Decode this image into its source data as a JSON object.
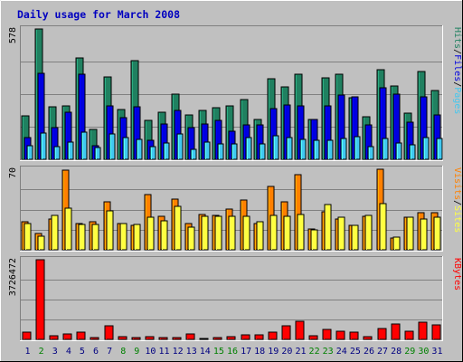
{
  "title": "Daily usage for March 2008",
  "colors": {
    "title_text": "#0000c0",
    "frame_bg": "#c0c0c0",
    "panel_bg": "#c0c0c0",
    "hits": "#208060",
    "files": "#0000e0",
    "pages": "#40c8f0",
    "visits": "#ff8000",
    "sites": "#ffff40",
    "kbytes": "#ff0000",
    "weekday_label": "#000080",
    "weekend_label": "#008000"
  },
  "chart_data": [
    {
      "type": "bar",
      "panel": "hits-files-pages",
      "ymax_label": "578",
      "ylim": [
        0,
        578
      ],
      "legend": [
        {
          "name": "Hits",
          "color_key": "hits"
        },
        {
          "name": "/",
          "color_key": "separator"
        },
        {
          "name": "Files",
          "color_key": "files"
        },
        {
          "name": "/",
          "color_key": "separator"
        },
        {
          "name": "Pages",
          "color_key": "pages"
        }
      ],
      "categories": [
        "1",
        "2",
        "3",
        "4",
        "5",
        "6",
        "7",
        "8",
        "9",
        "10",
        "11",
        "12",
        "13",
        "14",
        "15",
        "16",
        "17",
        "18",
        "19",
        "20",
        "21",
        "22",
        "23",
        "24",
        "25",
        "26",
        "27",
        "28",
        "29",
        "30",
        "31"
      ],
      "series": [
        {
          "name": "Hits",
          "color_key": "hits",
          "values": [
            193,
            578,
            232,
            237,
            449,
            134,
            365,
            220,
            437,
            171,
            210,
            288,
            197,
            216,
            229,
            235,
            264,
            175,
            357,
            320,
            376,
            178,
            361,
            378,
            271,
            188,
            399,
            327,
            205,
            389,
            307
          ]
        },
        {
          "name": "Files",
          "color_key": "files",
          "values": [
            95,
            382,
            140,
            208,
            378,
            61,
            237,
            183,
            232,
            86,
            158,
            216,
            139,
            158,
            173,
            124,
            154,
            151,
            225,
            242,
            237,
            178,
            238,
            284,
            276,
            152,
            316,
            289,
            164,
            276,
            197
          ]
        },
        {
          "name": "Pages",
          "color_key": "pages",
          "values": [
            61,
            118,
            57,
            75,
            121,
            53,
            113,
            98,
            90,
            56,
            72,
            113,
            46,
            77,
            69,
            68,
            98,
            68,
            104,
            95,
            88,
            86,
            85,
            93,
            101,
            55,
            94,
            72,
            65,
            96,
            92
          ]
        }
      ]
    },
    {
      "type": "bar",
      "panel": "visits-sites",
      "ymax_label": "70",
      "ylim": [
        0,
        70
      ],
      "legend": [
        {
          "name": "Visits",
          "color_key": "visits"
        },
        {
          "name": "/",
          "color_key": "separator"
        },
        {
          "name": "Sites",
          "color_key": "sites"
        }
      ],
      "categories": [
        "1",
        "2",
        "3",
        "4",
        "5",
        "6",
        "7",
        "8",
        "9",
        "10",
        "11",
        "12",
        "13",
        "14",
        "15",
        "16",
        "17",
        "18",
        "19",
        "20",
        "21",
        "22",
        "23",
        "24",
        "25",
        "26",
        "27",
        "28",
        "29",
        "30",
        "31"
      ],
      "series": [
        {
          "name": "Visits",
          "color_key": "visits",
          "values": [
            24,
            14,
            27,
            69,
            23,
            24,
            42,
            23,
            21,
            48,
            29,
            44,
            23,
            31,
            30,
            35,
            43,
            23,
            55,
            42,
            65,
            18,
            33,
            27,
            21,
            29,
            70,
            10,
            28,
            32,
            32
          ]
        },
        {
          "name": "Sites",
          "color_key": "sites",
          "values": [
            23,
            12,
            30,
            36,
            22,
            22,
            34,
            23,
            22,
            28,
            25,
            38,
            20,
            29,
            29,
            29,
            29,
            24,
            30,
            29,
            31,
            17,
            39,
            28,
            21,
            30,
            40,
            11,
            28,
            27,
            28
          ]
        }
      ]
    },
    {
      "type": "bar",
      "panel": "kbytes",
      "ymax_label": "3726472",
      "ylim": [
        0,
        3726472
      ],
      "legend": [
        {
          "name": "KBytes",
          "color_key": "kbytes"
        }
      ],
      "categories": [
        "1",
        "2",
        "3",
        "4",
        "5",
        "6",
        "7",
        "8",
        "9",
        "10",
        "11",
        "12",
        "13",
        "14",
        "15",
        "16",
        "17",
        "18",
        "19",
        "20",
        "21",
        "22",
        "23",
        "24",
        "25",
        "26",
        "27",
        "28",
        "29",
        "30",
        "31"
      ],
      "series": [
        {
          "name": "KBytes",
          "color_key": "kbytes",
          "values": [
            330000,
            3726472,
            160000,
            240000,
            320000,
            70000,
            620000,
            120000,
            100000,
            110000,
            90000,
            100000,
            240000,
            60000,
            90000,
            120000,
            200000,
            200000,
            320000,
            620000,
            850000,
            160000,
            450000,
            400000,
            330000,
            130000,
            500000,
            700000,
            360000,
            800000,
            670000
          ]
        }
      ]
    }
  ],
  "x_axis": {
    "labels": [
      "1",
      "2",
      "3",
      "4",
      "5",
      "6",
      "7",
      "8",
      "9",
      "10",
      "11",
      "12",
      "13",
      "14",
      "15",
      "16",
      "17",
      "18",
      "19",
      "20",
      "21",
      "22",
      "23",
      "24",
      "25",
      "26",
      "27",
      "28",
      "29",
      "30",
      "31"
    ],
    "weekend": [
      false,
      true,
      false,
      false,
      false,
      false,
      false,
      true,
      true,
      false,
      false,
      false,
      false,
      false,
      true,
      true,
      false,
      false,
      false,
      false,
      false,
      true,
      true,
      false,
      false,
      false,
      false,
      false,
      true,
      true,
      false
    ]
  }
}
